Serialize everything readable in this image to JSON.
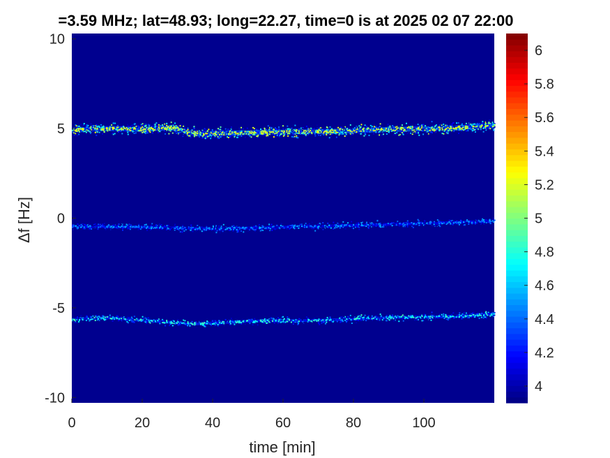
{
  "chart_data": {
    "type": "heatmap",
    "title": "=3.59 MHz;  lat=48.93; long=22.27, time=0 is at 2025 02 07 22:00",
    "xlabel": "time [min]",
    "ylabel": "Δf [Hz]",
    "xlim": [
      0,
      120
    ],
    "ylim": [
      -10.3,
      10.3
    ],
    "xticks": [
      0,
      20,
      40,
      60,
      80,
      100
    ],
    "yticks": [
      10,
      5,
      0,
      -5,
      -10
    ],
    "colorbar": {
      "min": 3.9,
      "max": 6.1,
      "ticks": [
        4,
        4.2,
        4.4,
        4.6,
        4.8,
        5,
        5.2,
        5.4,
        5.6,
        5.8,
        6
      ],
      "colormap": "jet"
    },
    "background_level": 3.92,
    "background_color": "#00008f",
    "grid": false,
    "traces": [
      {
        "name": "",
        "time": [
          0,
          10,
          20,
          28,
          35,
          45,
          60,
          75,
          90,
          105,
          120
        ],
        "df": [
          4.9,
          5.0,
          4.95,
          5.05,
          4.7,
          4.75,
          4.8,
          4.85,
          4.95,
          5.0,
          5.15
        ],
        "peak_level": 5.3
      },
      {
        "name": "",
        "time": [
          0,
          20,
          40,
          60,
          80,
          100,
          120
        ],
        "df": [
          -0.45,
          -0.5,
          -0.6,
          -0.5,
          -0.4,
          -0.3,
          -0.15
        ],
        "peak_level": 4.6
      },
      {
        "name": "",
        "time": [
          0,
          10,
          20,
          35,
          50,
          70,
          90,
          105,
          120
        ],
        "df": [
          -5.65,
          -5.55,
          -5.7,
          -5.9,
          -5.75,
          -5.7,
          -5.55,
          -5.5,
          -5.35
        ],
        "peak_level": 4.9
      }
    ]
  }
}
